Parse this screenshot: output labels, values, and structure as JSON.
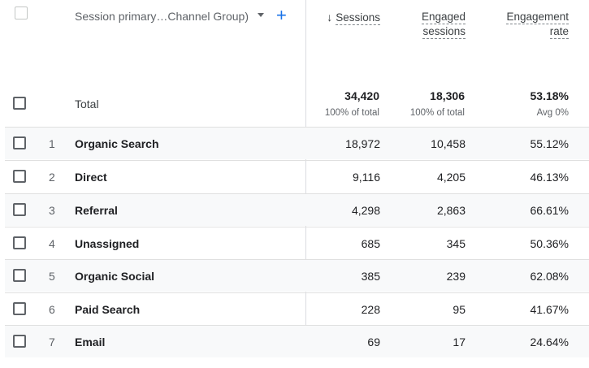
{
  "header": {
    "dimension_label": "Session primary…Channel Group)",
    "add_label": "+",
    "sort_arrow": "↓",
    "sessions_label": "Sessions",
    "engaged_line1": "Engaged",
    "engaged_line2": "sessions",
    "engrate_line1": "Engagement",
    "engrate_line2": "rate"
  },
  "totals": {
    "label": "Total",
    "sessions": "34,420",
    "sessions_sub": "100% of total",
    "engaged": "18,306",
    "engaged_sub": "100% of total",
    "rate": "53.18%",
    "rate_sub": "Avg 0%"
  },
  "rows": [
    {
      "idx": "1",
      "name": "Organic Search",
      "sessions": "18,972",
      "engaged": "10,458",
      "rate": "55.12%"
    },
    {
      "idx": "2",
      "name": "Direct",
      "sessions": "9,116",
      "engaged": "4,205",
      "rate": "46.13%"
    },
    {
      "idx": "3",
      "name": "Referral",
      "sessions": "4,298",
      "engaged": "2,863",
      "rate": "66.61%"
    },
    {
      "idx": "4",
      "name": "Unassigned",
      "sessions": "685",
      "engaged": "345",
      "rate": "50.36%"
    },
    {
      "idx": "5",
      "name": "Organic Social",
      "sessions": "385",
      "engaged": "239",
      "rate": "62.08%"
    },
    {
      "idx": "6",
      "name": "Paid Search",
      "sessions": "228",
      "engaged": "95",
      "rate": "41.67%"
    },
    {
      "idx": "7",
      "name": "Email",
      "sessions": "69",
      "engaged": "17",
      "rate": "24.64%"
    }
  ],
  "colors": {
    "accent": "#1a73e8",
    "row_alt": "#f8f9fa",
    "divider": "#e0e0e0"
  }
}
